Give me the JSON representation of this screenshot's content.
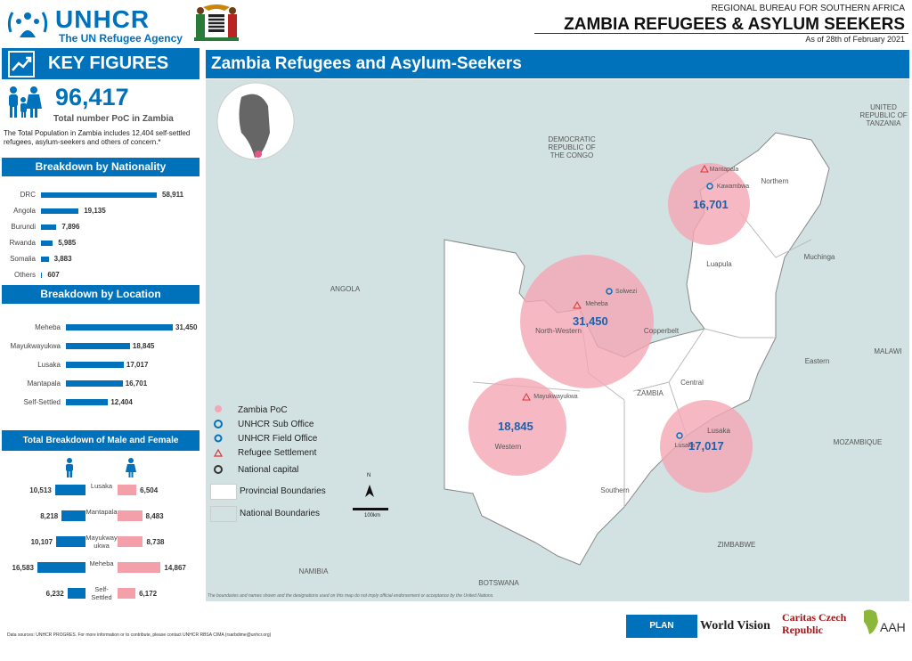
{
  "header": {
    "org_name": "UNHCR",
    "org_tagline": "The UN Refugee Agency",
    "bureau": "REGIONAL BUREAU FOR SOUTHERN AFRICA",
    "title": "ZAMBIA REFUGEES & ASYLUM SEEKERS",
    "date": "As of 28th of February 2021"
  },
  "key_figures": {
    "heading": "KEY FIGURES",
    "total": "96,417",
    "total_label": "Total number PoC in Zambia",
    "note": "The Total Population in Zambia includes 12,404 self-settled refugees, asylum-seekers and others of concern.*"
  },
  "nationality": {
    "heading": "Breakdown by Nationality",
    "items": [
      {
        "label": "DRC",
        "value": 58911,
        "text": "58,911"
      },
      {
        "label": "Angola",
        "value": 19135,
        "text": "19,135"
      },
      {
        "label": "Burundi",
        "value": 7896,
        "text": "7,896"
      },
      {
        "label": "Rwanda",
        "value": 5985,
        "text": "5,985"
      },
      {
        "label": "Somalia",
        "value": 3883,
        "text": "3,883"
      },
      {
        "label": "Others",
        "value": 607,
        "text": "607"
      }
    ]
  },
  "location": {
    "heading": "Breakdown by Location",
    "items": [
      {
        "label": "Meheba",
        "value": 31450,
        "text": "31,450"
      },
      {
        "label": "Mayukwayukwa",
        "value": 18845,
        "text": "18,845"
      },
      {
        "label": "Lusaka",
        "value": 17017,
        "text": "17,017"
      },
      {
        "label": "Mantapala",
        "value": 16701,
        "text": "16,701"
      },
      {
        "label": "Self-Settled",
        "value": 12404,
        "text": "12,404"
      }
    ]
  },
  "gender": {
    "heading": "Total Breakdown of Male and Female",
    "items": [
      {
        "label": "Lusaka",
        "male": 10513,
        "male_text": "10,513",
        "female": 6504,
        "female_text": "6,504"
      },
      {
        "label": "Mantapala",
        "male": 8218,
        "male_text": "8,218",
        "female": 8483,
        "female_text": "8,483"
      },
      {
        "label": "Mayukway ukwa",
        "male": 10107,
        "male_text": "10,107",
        "female": 8738,
        "female_text": "8,738"
      },
      {
        "label": "Meheba",
        "male": 16583,
        "male_text": "16,583",
        "female": 14867,
        "female_text": "14,867"
      },
      {
        "label": "Self-Settled",
        "male": 6232,
        "male_text": "6,232",
        "female": 6172,
        "female_text": "6,172"
      }
    ]
  },
  "map": {
    "title": "Zambia Refugees and Asylum-Seekers",
    "countries": [
      "DEMOCRATIC REPUBLIC OF THE CONGO",
      "UNITED REPUBLIC OF TANZANIA",
      "ANGOLA",
      "MALAWI",
      "MOZAMBIQUE",
      "ZIMBABWE",
      "BOTSWANA",
      "NAMIBIA",
      "ZAMBIA"
    ],
    "provinces": [
      "Northern",
      "Muchinga",
      "Luapula",
      "North-Western",
      "Copperbelt",
      "Eastern",
      "Central",
      "Lusaka",
      "Western",
      "Southern"
    ],
    "places": [
      "Mantapala",
      "Kawambwa",
      "Solwezi",
      "Meheba",
      "Mayukwayukwa",
      "Lusaka"
    ],
    "circles": [
      "16,701",
      "31,450",
      "18,845",
      "17,017"
    ],
    "legend": {
      "poc": "Zambia PoC",
      "sub_office": "UNHCR Sub Office",
      "field_office": "UNHCR Field Office",
      "settlement": "Refugee Settlement",
      "capital": "National capital",
      "prov_bound": "Provincial Boundaries",
      "nat_bound": "National Boundaries"
    },
    "scale": "100km",
    "north": "N",
    "disclaimer": "The boundaries and names shown and the designations used on this map do not imply official endorsement or acceptance by the United Nations."
  },
  "footer": {
    "sources": "Data sources: UNHCR PROGRES.    For more information or to contribute, please contact UNHCR RBSA CIMA (rsarbdime@unhcr.org)",
    "partners": [
      "PLAN INTERNATIONAL",
      "World Vision",
      "Caritas Czech Republic",
      "AAH"
    ]
  },
  "colors": {
    "brand": "#0072bc",
    "female": "#f4a0ab",
    "circle": "#f4a6b4",
    "water": "#d2e2e2"
  }
}
